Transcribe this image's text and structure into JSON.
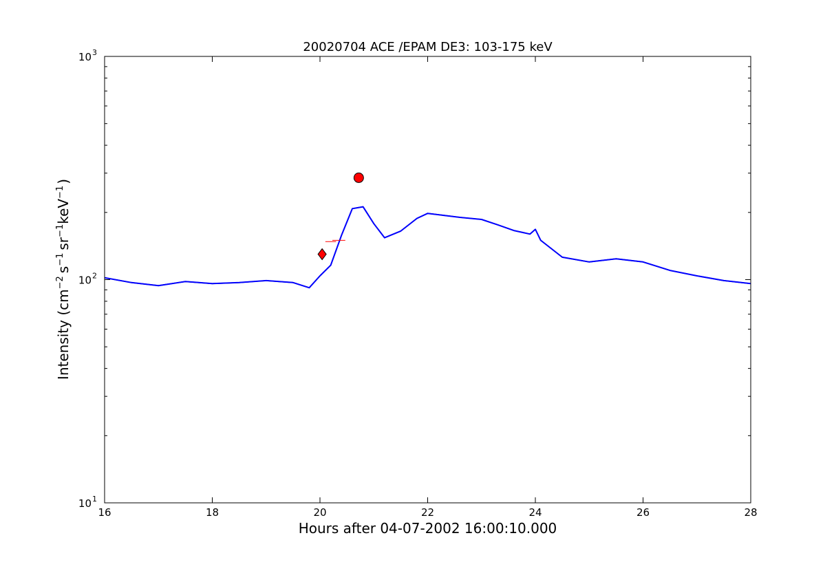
{
  "chart_data": {
    "type": "line",
    "title": "20020704 ACE /EPAM DE3: 103-175 keV",
    "xlabel": "Hours after 04-07-2002 16:00:10.000",
    "ylabel": "Intensity (cm^-2 s^-1 sr^-1 keV^-1)",
    "ylabel_parts": {
      "prefix": "Intensity (cm",
      "exp1": "−2",
      "s": "s",
      "exp2": "−1",
      "sr": "sr",
      "exp3": "−1",
      "kev": "keV",
      "exp4": "−1",
      "suffix": ")"
    },
    "xlim": [
      16,
      28
    ],
    "ylim": [
      10,
      1000
    ],
    "yscale": "log",
    "x_ticks": [
      16,
      18,
      20,
      22,
      24,
      26,
      28
    ],
    "x_tick_labels": [
      "16",
      "18",
      "20",
      "22",
      "24",
      "26",
      "28"
    ],
    "y_ticks": [
      {
        "value": 10,
        "base": "10",
        "exp": "1"
      },
      {
        "value": 100,
        "base": "10",
        "exp": "2"
      },
      {
        "value": 1000,
        "base": "10",
        "exp": "3"
      }
    ],
    "grid": false,
    "legend": "none",
    "series": [
      {
        "color": "#000000",
        "style": "raw",
        "x": [
          16.0,
          16.5,
          17.0,
          17.5,
          18.0,
          18.5,
          19.0,
          19.5,
          19.8,
          20.0,
          20.2,
          20.4,
          20.6,
          20.8,
          21.0,
          21.2,
          21.5,
          21.8,
          22.0,
          22.3,
          22.6,
          23.0,
          23.3,
          23.6,
          23.9,
          24.0,
          24.1,
          24.5,
          25.0,
          25.5,
          26.0,
          26.5,
          27.0,
          27.5,
          28.0
        ],
        "y": [
          102,
          97,
          94,
          98,
          96,
          97,
          99,
          97,
          92,
          104,
          116,
          158,
          208,
          212,
          178,
          154,
          165,
          188,
          198,
          194,
          190,
          186,
          176,
          166,
          160,
          168,
          150,
          126,
          120,
          124,
          120,
          110,
          104,
          99,
          96
        ]
      },
      {
        "color": "#0000ff",
        "style": "smoothed",
        "x": [
          16.0,
          16.5,
          17.0,
          17.5,
          18.0,
          18.5,
          19.0,
          19.5,
          19.8,
          20.0,
          20.2,
          20.4,
          20.6,
          20.8,
          21.0,
          21.2,
          21.5,
          21.8,
          22.0,
          22.3,
          22.6,
          23.0,
          23.3,
          23.6,
          23.9,
          24.0,
          24.1,
          24.5,
          25.0,
          25.5,
          26.0,
          26.5,
          27.0,
          27.5,
          28.0
        ],
        "y": [
          102,
          97,
          94,
          98,
          96,
          97,
          99,
          97,
          92,
          104,
          116,
          158,
          208,
          212,
          178,
          154,
          165,
          188,
          198,
          194,
          190,
          186,
          176,
          166,
          160,
          168,
          150,
          126,
          120,
          124,
          120,
          110,
          104,
          99,
          96
        ]
      }
    ],
    "markers": [
      {
        "shape": "diamond",
        "color": "#ff0000",
        "x": 20.04,
        "y": 130
      },
      {
        "shape": "circle",
        "color": "#ff0000",
        "x": 20.72,
        "y": 286
      }
    ],
    "error_bars": [
      {
        "color": "#ff0000",
        "x": 20.2,
        "y": 148,
        "x_err": 0.1
      },
      {
        "color": "#ff0000",
        "x": 20.35,
        "y": 150,
        "x_err": 0.12
      }
    ]
  }
}
